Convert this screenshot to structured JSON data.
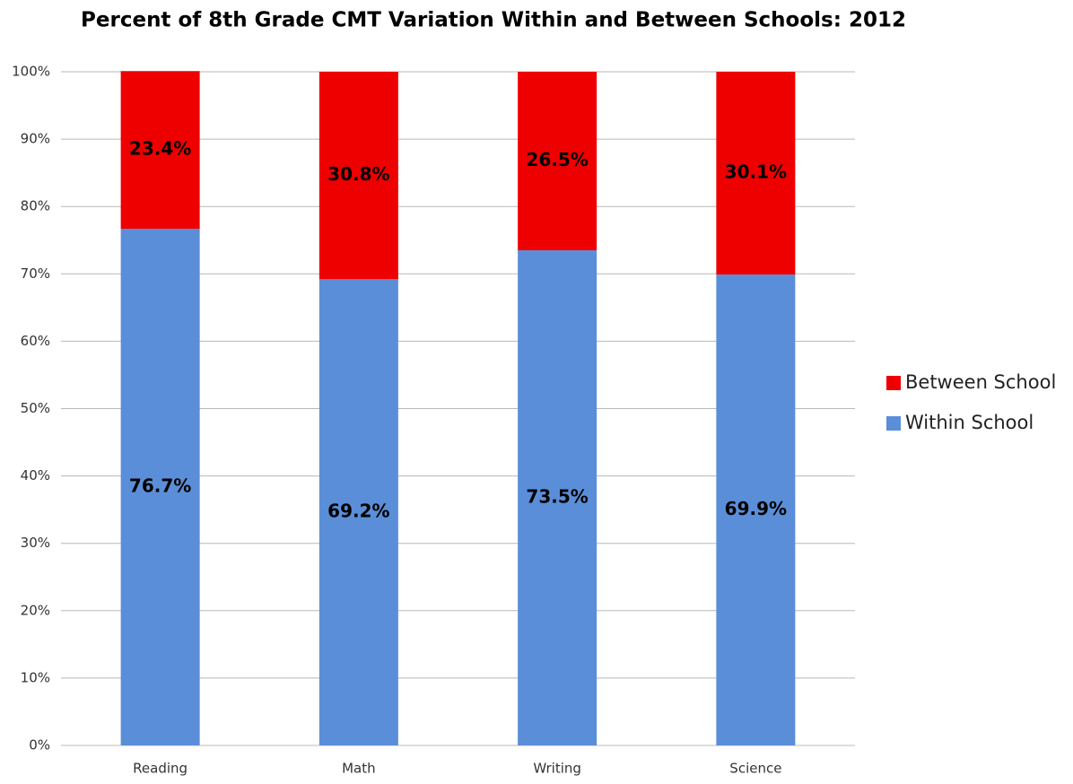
{
  "chart_data": {
    "type": "stacked_bar",
    "title": "Percent of 8th Grade CMT Variation Within and Between Schools:  2012",
    "categories": [
      "Reading",
      "Math",
      "Writing",
      "Science"
    ],
    "series": [
      {
        "name": "Within School",
        "color": "#5b8ed8",
        "values": [
          76.7,
          69.2,
          73.5,
          69.9
        ],
        "value_labels": [
          "76.7%",
          "69.2%",
          "73.5%",
          "69.9%"
        ]
      },
      {
        "name": "Between School",
        "color": "#ee0000",
        "values": [
          23.4,
          30.8,
          26.5,
          30.1
        ],
        "value_labels": [
          "23.4%",
          "30.8%",
          "26.5%",
          "30.1%"
        ]
      }
    ],
    "ylim": [
      0,
      100
    ],
    "yticks": [
      {
        "value": 0,
        "label": "0%"
      },
      {
        "value": 10,
        "label": "10%"
      },
      {
        "value": 20,
        "label": "20%"
      },
      {
        "value": 30,
        "label": "30%"
      },
      {
        "value": 40,
        "label": "40%"
      },
      {
        "value": 50,
        "label": "50%"
      },
      {
        "value": 60,
        "label": "60%"
      },
      {
        "value": 70,
        "label": "70%"
      },
      {
        "value": 80,
        "label": "80%"
      },
      {
        "value": 90,
        "label": "90%"
      },
      {
        "value": 100,
        "label": "100%"
      }
    ],
    "grid": true,
    "legend": "right"
  }
}
